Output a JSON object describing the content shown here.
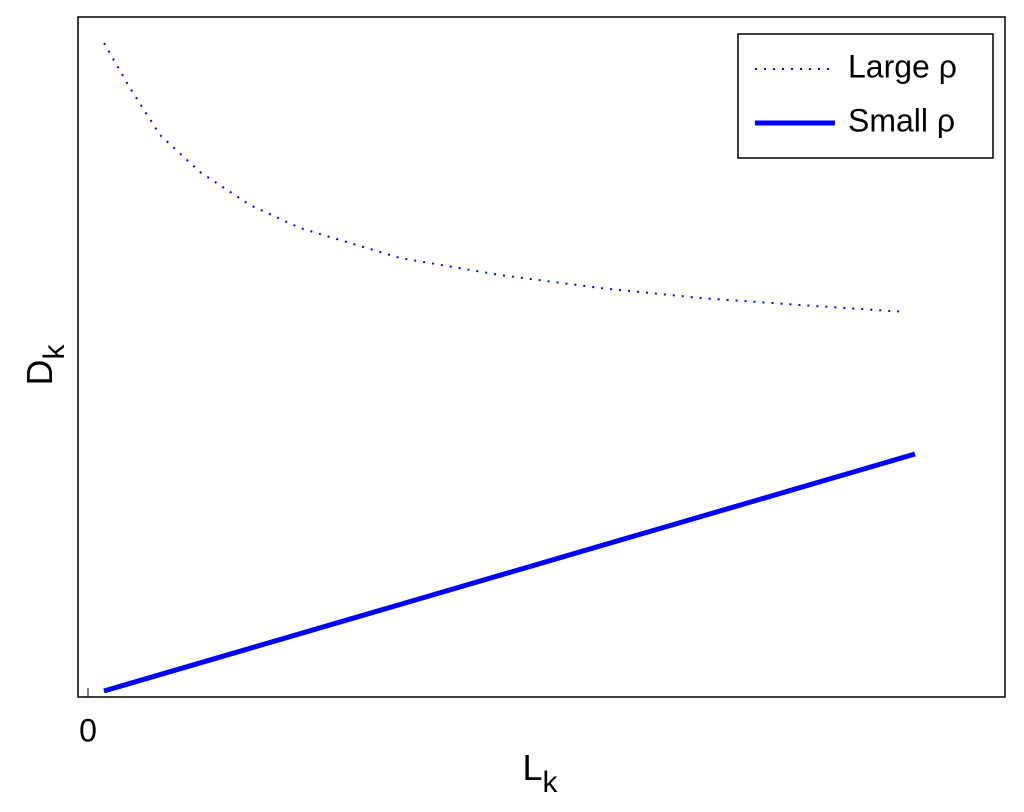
{
  "chart_data": {
    "type": "line",
    "xlabel": "L",
    "xlabel_subscript": "k",
    "ylabel": "D",
    "ylabel_subscript": "k",
    "xlim": [
      -0.1,
      9.17
    ],
    "ylim": [
      0,
      6.8
    ],
    "xticks": [
      0
    ],
    "yticks": [],
    "legend": "upper right",
    "series": [
      {
        "name": "Large ρ",
        "color": "#0000ff",
        "style": "dotted",
        "x": [
          0.16,
          0.42,
          0.72,
          1.12,
          1.62,
          2.12,
          3.12,
          4.12,
          5.12,
          6.12,
          7.12,
          8.18
        ],
        "values": [
          6.54,
          6.09,
          5.62,
          5.25,
          4.92,
          4.69,
          4.39,
          4.22,
          4.09,
          3.99,
          3.92,
          3.85
        ]
      },
      {
        "name": "Small ρ",
        "color": "#0000ff",
        "style": "solid",
        "x": [
          0.16,
          8.27
        ],
        "values": [
          0.06,
          2.43
        ]
      }
    ]
  }
}
